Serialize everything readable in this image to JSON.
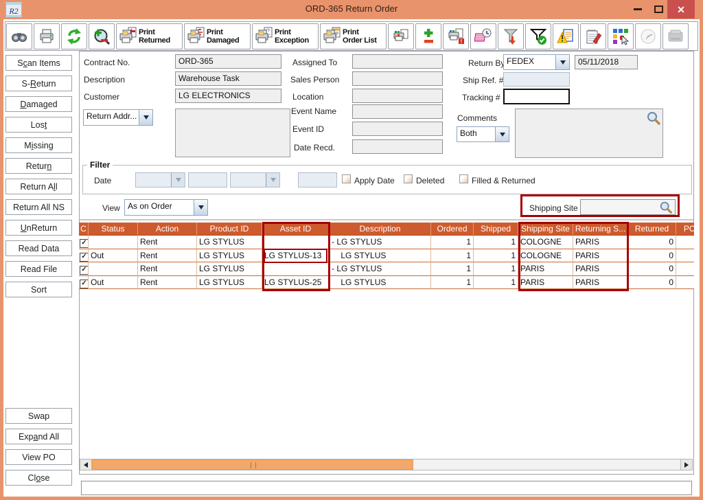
{
  "window": {
    "title": "ORD-365 Return Order",
    "logo_text": "R2",
    "close_glyph": "✕"
  },
  "toolbar": {
    "icons_left": [
      "binoculars-icon",
      "printer-icon",
      "refresh-icon",
      "zoom-adjust-icon"
    ],
    "print_buttons": [
      {
        "line1": "Print",
        "line2": "Returned"
      },
      {
        "line1": "Print",
        "line2": "Damaged"
      },
      {
        "line1": "Print",
        "line2": "Exception"
      },
      {
        "line1": "Print",
        "line2": "Order List"
      }
    ],
    "icons_right": [
      "barcode-print-icon",
      "add-remove-icon",
      "print-alert-icon",
      "notes-clock-icon",
      "filter-arrow-icon",
      "filter-check-icon",
      "warning-doc-icon",
      "notepad-edit-icon",
      "layout-cursor-icon",
      "clock-icon",
      "device-icon"
    ]
  },
  "sidebar": {
    "buttons": [
      {
        "label": "Scan Items",
        "u": 1
      },
      {
        "label": "S-Return",
        "u": 2
      },
      {
        "label": "Damaged",
        "u": 0
      },
      {
        "label": "Lost",
        "u": 3
      },
      {
        "label": "Missing",
        "u": 1
      },
      {
        "label": "Return",
        "u": 5
      },
      {
        "label": "Return All",
        "u": 8
      },
      {
        "label": "Return All NS",
        "u": -1
      },
      {
        "label": "UnReturn",
        "u": 0
      },
      {
        "label": "Read Data",
        "u": -1
      },
      {
        "label": "Read File",
        "u": -1
      },
      {
        "label": "Sort",
        "u": -1
      }
    ],
    "bottom_buttons": [
      {
        "label": "Swap",
        "u": -1
      },
      {
        "label": "Expand All",
        "u": 3
      },
      {
        "label": "View PO",
        "u": -1
      },
      {
        "label": "Close",
        "u": 2
      }
    ]
  },
  "form": {
    "contract_label": "Contract No.",
    "contract_value": "ORD-365",
    "description_label": "Description",
    "description_value": "Warehouse Task",
    "customer_label": "Customer",
    "customer_value": "LG ELECTRONICS",
    "return_addr_label": "Return Addr...",
    "address_value": "",
    "assigned_to_label": "Assigned To",
    "assigned_to_value": "",
    "sales_person_label": "Sales Person",
    "sales_person_value": "",
    "location_label": "Location",
    "location_value": "",
    "event_name_label": "Event Name",
    "event_name_value": "",
    "event_id_label": "Event ID",
    "event_id_value": "",
    "date_recd_label": "Date Recd.",
    "date_recd_value": "",
    "return_by_label": "Return By",
    "return_by_value": "FEDEX",
    "return_date_value": "05/11/2018",
    "ship_ref_label": "Ship Ref. #",
    "ship_ref_value": "",
    "tracking_label": "Tracking #",
    "tracking_value": "",
    "comments_label": "Comments",
    "comments_mode_value": "Both",
    "comments_value": ""
  },
  "filter": {
    "title": "Filter",
    "date_label": "Date",
    "checkboxes": [
      {
        "label": "Apply Date",
        "checked": false
      },
      {
        "label": "Deleted",
        "checked": false
      },
      {
        "label": "Filled & Returned",
        "checked": false
      }
    ]
  },
  "view_bar": {
    "view_label": "View",
    "view_value": "As on Order",
    "shipping_site_label": "Shipping Site",
    "shipping_site_value": ""
  },
  "table": {
    "columns": [
      "C",
      "Status",
      "Action",
      "Product ID",
      "Asset ID",
      "Description",
      "Ordered",
      "Shipped",
      "Shipping Site",
      "Returning S...",
      "Returned",
      "PO"
    ],
    "rows": [
      {
        "checked": true,
        "status": "",
        "action": "Rent",
        "product_id": "LG STYLUS",
        "asset_id": "",
        "description": "- LG STYLUS",
        "ordered": "1",
        "shipped": "1",
        "shipping_site": "COLOGNE",
        "returning_site": "PARIS",
        "returned": "0",
        "po": ""
      },
      {
        "checked": true,
        "status": "Out",
        "action": "Rent",
        "product_id": "LG STYLUS",
        "asset_id": "LG STYLUS-13",
        "description": "    LG STYLUS",
        "ordered": "1",
        "shipped": "1",
        "shipping_site": "COLOGNE",
        "returning_site": "PARIS",
        "returned": "0",
        "po": ""
      },
      {
        "checked": true,
        "status": "",
        "action": "Rent",
        "product_id": "LG STYLUS",
        "asset_id": "",
        "description": "- LG STYLUS",
        "ordered": "1",
        "shipped": "1",
        "shipping_site": "PARIS",
        "returning_site": "PARIS",
        "returned": "0",
        "po": ""
      },
      {
        "checked": true,
        "status": "Out",
        "action": "Rent",
        "product_id": "LG STYLUS",
        "asset_id": "LG STYLUS-25",
        "description": "    LG STYLUS",
        "ordered": "1",
        "shipped": "1",
        "shipping_site": "PARIS",
        "returning_site": "PARIS",
        "returned": "0",
        "po": ""
      }
    ]
  },
  "footer": {
    "value": ""
  },
  "colors": {
    "titlebar": "#e8936b",
    "close_button": "#c9504e",
    "table_header": "#ce5b2d",
    "highlight_red": "#a40000",
    "scrollbar_thumb": "#f2a76b"
  }
}
